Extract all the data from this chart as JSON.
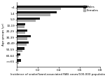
{
  "categories": [
    ">=65",
    "60-64",
    "50-59",
    "40-49",
    "30-39",
    "20-29",
    "10-19",
    "5-9",
    "1-4",
    "<1"
  ],
  "males": [
    0.04,
    0.03,
    0.07,
    0.11,
    0.13,
    0.1,
    0.08,
    0.22,
    0.38,
    0.68
  ],
  "females": [
    0.02,
    0.02,
    0.05,
    0.09,
    0.1,
    0.08,
    0.07,
    0.18,
    0.32,
    0.42
  ],
  "male_color": "#1a1a1a",
  "female_color": "#aaaaaa",
  "xlabel": "Incidence of snake/lizard-associated RAS cases/100,000 population",
  "ylabel": "Age groups (yr)",
  "xlim": [
    0,
    0.8
  ],
  "xticks": [
    0,
    0.2,
    0.4,
    0.6,
    0.8
  ],
  "xtick_labels": [
    "0",
    "0.2",
    "0.4",
    "0.6",
    "0.8"
  ],
  "legend_male": "Males",
  "legend_female": "Females",
  "tick_fontsize": 3.0,
  "label_fontsize": 3.0,
  "legend_fontsize": 3.0
}
